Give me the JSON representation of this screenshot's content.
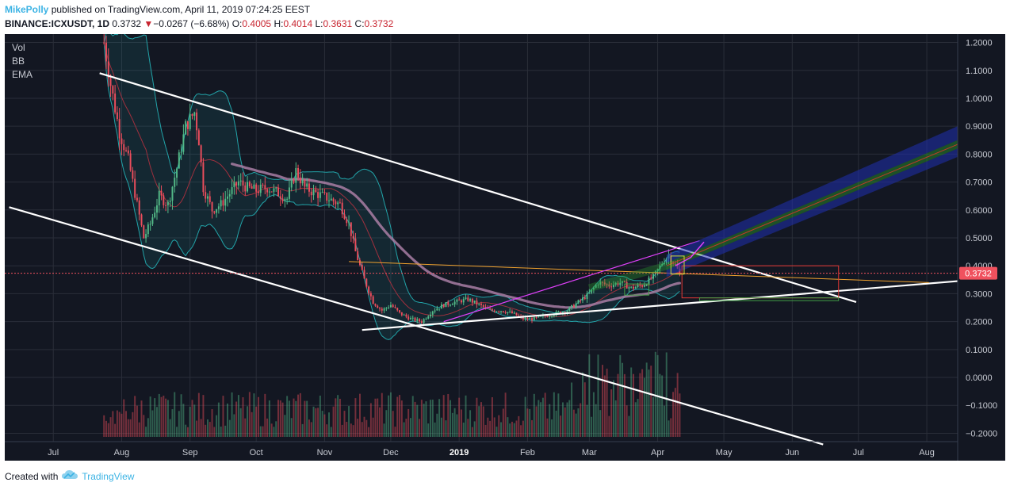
{
  "header": {
    "author": "MikePolly",
    "published_text": "published on TradingView.com, April 11, 2019 07:24:25 EEST",
    "symbol": "BINANCE:ICXUSDT, 1D",
    "last": "0.3732",
    "change_arrow": "▼",
    "change": "−0.0267 (−6.68%)",
    "open_label": "O:",
    "open": "0.4005",
    "high_label": "H:",
    "high": "0.4014",
    "low_label": "L:",
    "low": "0.3631",
    "close_label": "C:",
    "close": "0.3732"
  },
  "indicators": [
    "Vol",
    "BB",
    "EMA"
  ],
  "price_badge": "0.3732",
  "footer": {
    "created_with": "Created with",
    "brand": "TradingView",
    "logo_icon": "tradingview-cloud-icon"
  },
  "colors": {
    "background": "#131722",
    "up": "#53b987",
    "down": "#eb4d5c",
    "bb": "#22a4a9",
    "ema": "#a97ea5",
    "trendline": "#ffffff",
    "accent": "#3bb3e4",
    "badge": "#f0515e"
  },
  "chart_data": {
    "type": "candlestick",
    "title": "BINANCE:ICXUSDT, 1D",
    "ylim": [
      -0.23,
      1.23
    ],
    "y_ticks": [
      "1.2000",
      "1.1000",
      "1.0000",
      "0.9000",
      "0.8000",
      "0.7000",
      "0.6000",
      "0.5000",
      "0.4000",
      "0.3000",
      "0.2000",
      "0.1000",
      "0.0000",
      "−0.1000",
      "−0.2000"
    ],
    "y_tick_values": [
      1.2,
      1.1,
      1.0,
      0.9,
      0.8,
      0.7,
      0.6,
      0.5,
      0.4,
      0.3,
      0.2,
      0.1,
      0.0,
      -0.1,
      -0.2
    ],
    "x_ticks": [
      {
        "label": "Jul",
        "date": "2018-07-01"
      },
      {
        "label": "Aug",
        "date": "2018-08-01"
      },
      {
        "label": "Sep",
        "date": "2018-09-01"
      },
      {
        "label": "Oct",
        "date": "2018-10-01"
      },
      {
        "label": "Nov",
        "date": "2018-11-01"
      },
      {
        "label": "Dec",
        "date": "2018-12-01"
      },
      {
        "label": "2019",
        "date": "2019-01-01",
        "bold": true
      },
      {
        "label": "Feb",
        "date": "2019-02-01"
      },
      {
        "label": "Mar",
        "date": "2019-03-01"
      },
      {
        "label": "Apr",
        "date": "2019-04-01"
      },
      {
        "label": "May",
        "date": "2019-05-01"
      },
      {
        "label": "Jun",
        "date": "2019-06-01"
      },
      {
        "label": "Jul",
        "date": "2019-07-01"
      },
      {
        "label": "Aug",
        "date": "2019-08-01"
      }
    ],
    "xlim": [
      "2018-06-09",
      "2019-08-15"
    ],
    "last_price": 0.3732,
    "price_path": [
      [
        "2018-07-24",
        1.2
      ],
      [
        "2018-07-27",
        1.05
      ],
      [
        "2018-07-31",
        0.88
      ],
      [
        "2018-08-04",
        0.78
      ],
      [
        "2018-08-08",
        0.62
      ],
      [
        "2018-08-11",
        0.5
      ],
      [
        "2018-08-14",
        0.55
      ],
      [
        "2018-08-18",
        0.65
      ],
      [
        "2018-08-22",
        0.62
      ],
      [
        "2018-08-26",
        0.75
      ],
      [
        "2018-08-30",
        0.9
      ],
      [
        "2018-09-03",
        0.95
      ],
      [
        "2018-09-05",
        0.85
      ],
      [
        "2018-09-07",
        0.68
      ],
      [
        "2018-09-11",
        0.6
      ],
      [
        "2018-09-15",
        0.62
      ],
      [
        "2018-09-19",
        0.66
      ],
      [
        "2018-09-23",
        0.7
      ],
      [
        "2018-09-27",
        0.68
      ],
      [
        "2018-10-01",
        0.67
      ],
      [
        "2018-10-06",
        0.68
      ],
      [
        "2018-10-11",
        0.66
      ],
      [
        "2018-10-15",
        0.64
      ],
      [
        "2018-10-19",
        0.74
      ],
      [
        "2018-10-23",
        0.68
      ],
      [
        "2018-10-28",
        0.66
      ],
      [
        "2018-11-03",
        0.64
      ],
      [
        "2018-11-08",
        0.62
      ],
      [
        "2018-11-12",
        0.55
      ],
      [
        "2018-11-15",
        0.45
      ],
      [
        "2018-11-19",
        0.35
      ],
      [
        "2018-11-23",
        0.27
      ],
      [
        "2018-11-27",
        0.24
      ],
      [
        "2018-12-01",
        0.26
      ],
      [
        "2018-12-05",
        0.23
      ],
      [
        "2018-12-10",
        0.21
      ],
      [
        "2018-12-15",
        0.2
      ],
      [
        "2018-12-20",
        0.24
      ],
      [
        "2018-12-25",
        0.26
      ],
      [
        "2018-12-30",
        0.27
      ],
      [
        "2019-01-05",
        0.28
      ],
      [
        "2019-01-10",
        0.26
      ],
      [
        "2019-01-15",
        0.24
      ],
      [
        "2019-01-20",
        0.24
      ],
      [
        "2019-01-25",
        0.23
      ],
      [
        "2019-01-30",
        0.21
      ],
      [
        "2019-02-04",
        0.21
      ],
      [
        "2019-02-09",
        0.22
      ],
      [
        "2019-02-14",
        0.23
      ],
      [
        "2019-02-19",
        0.24
      ],
      [
        "2019-02-24",
        0.27
      ],
      [
        "2019-03-01",
        0.3
      ],
      [
        "2019-03-05",
        0.34
      ],
      [
        "2019-03-10",
        0.33
      ],
      [
        "2019-03-15",
        0.34
      ],
      [
        "2019-03-20",
        0.32
      ],
      [
        "2019-03-25",
        0.33
      ],
      [
        "2019-03-30",
        0.36
      ],
      [
        "2019-04-03",
        0.41
      ],
      [
        "2019-04-06",
        0.44
      ],
      [
        "2019-04-09",
        0.4
      ],
      [
        "2019-04-11",
        0.3732
      ]
    ],
    "volume_visible": true
  }
}
